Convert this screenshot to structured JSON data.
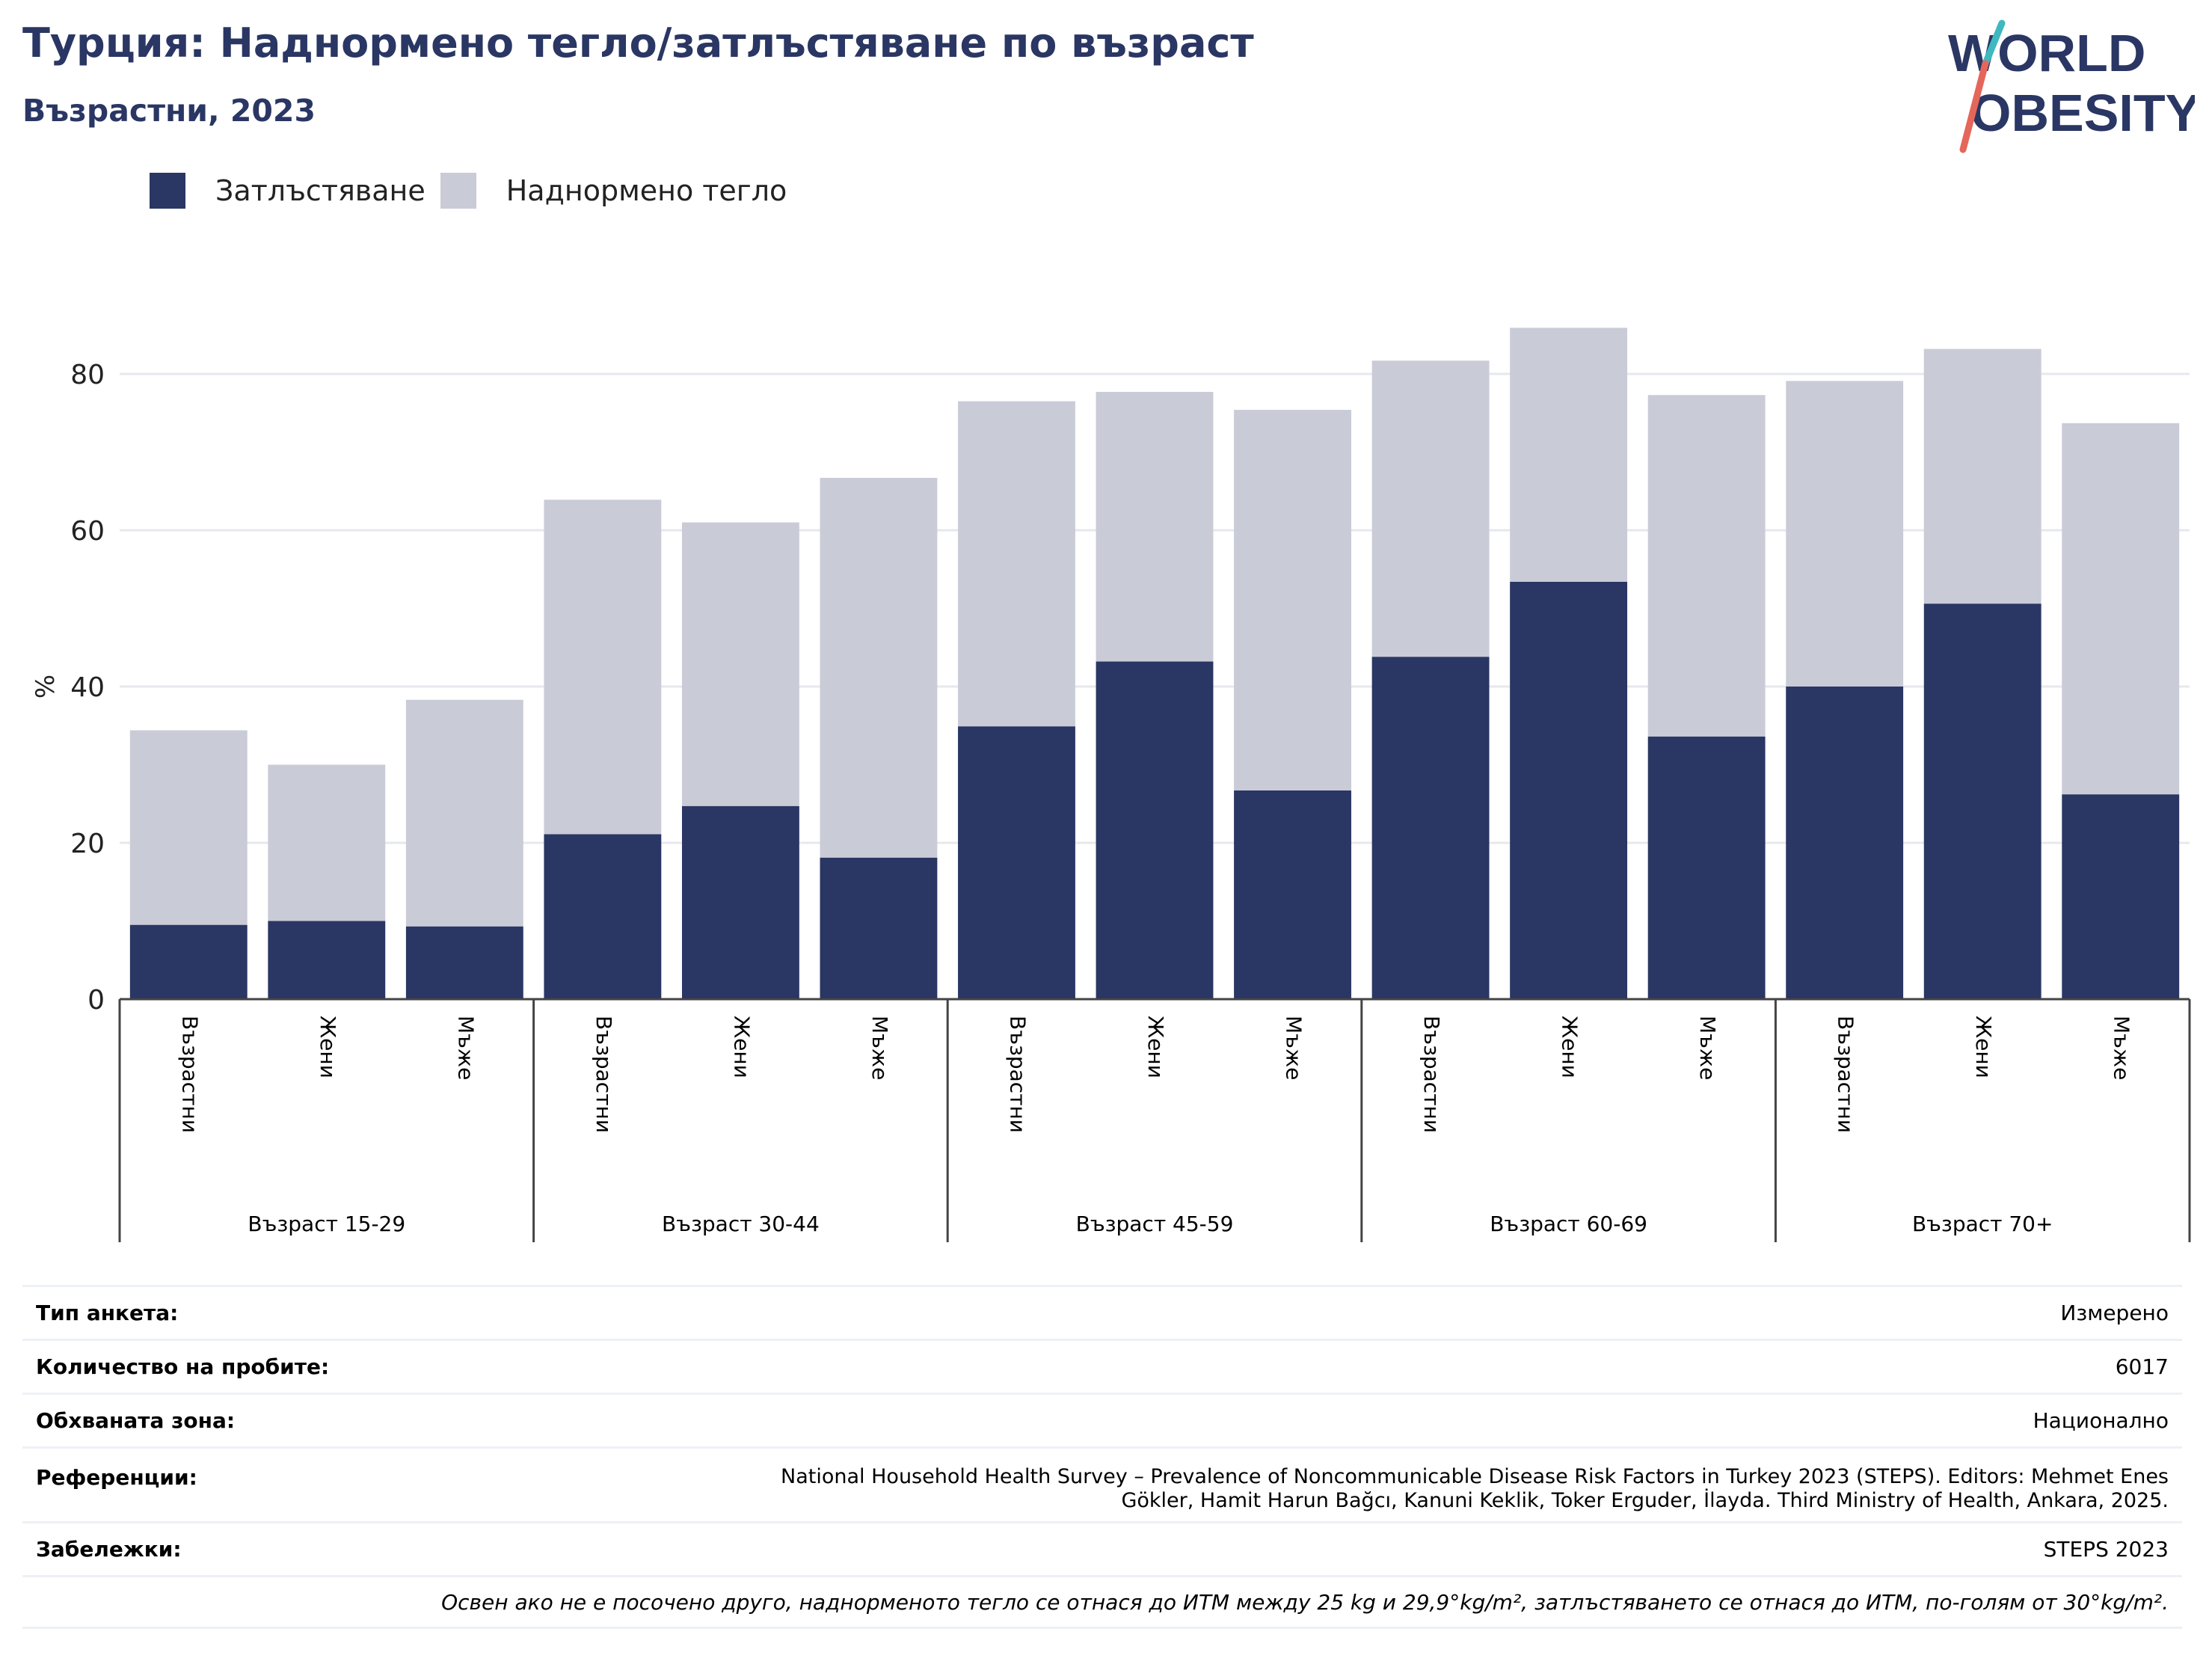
{
  "header": {
    "title": "Турция: Наднормено тегло/затлъстяване по възраст",
    "subtitle": "Възрастни, 2023"
  },
  "logo": {
    "line1": "WORLD",
    "line2": "OBESITY"
  },
  "legend": {
    "obesity_label": "Затлъстяване",
    "overweight_label": "Наднормено тегло"
  },
  "colors": {
    "obesity": "#2a3663",
    "overweight": "#c9cbd7",
    "grid": "#e6e8ee",
    "logo_teal": "#3fb8c0",
    "logo_coral": "#e5665a"
  },
  "chart_data": {
    "type": "bar",
    "stacked": true,
    "ylabel": "%",
    "ylim": [
      0,
      90
    ],
    "yticks": [
      0,
      20,
      40,
      60,
      80
    ],
    "grid": true,
    "legend_position": "top-left",
    "groups": [
      {
        "label": "Възраст 15-29",
        "categories": [
          "Възрастни",
          "Жени",
          "Мъже"
        ]
      },
      {
        "label": "Възраст 30-44",
        "categories": [
          "Възрастни",
          "Жени",
          "Мъже"
        ]
      },
      {
        "label": "Възраст 45-59",
        "categories": [
          "Възрастни",
          "Жени",
          "Мъже"
        ]
      },
      {
        "label": "Възраст 60-69",
        "categories": [
          "Възрастни",
          "Жени",
          "Мъже"
        ]
      },
      {
        "label": "Възраст 70+",
        "categories": [
          "Възрастни",
          "Жени",
          "Мъже"
        ]
      }
    ],
    "series": [
      {
        "name": "Затлъстяване",
        "values": [
          9.5,
          10.0,
          9.3,
          21.1,
          24.7,
          18.1,
          34.9,
          43.2,
          26.7,
          43.8,
          53.4,
          33.6,
          40.0,
          50.6,
          26.2
        ]
      },
      {
        "name": "Наднормено тегло",
        "values": [
          24.9,
          20.0,
          29.0,
          42.8,
          36.3,
          48.6,
          41.6,
          34.5,
          48.7,
          37.9,
          32.5,
          43.7,
          39.1,
          32.6,
          47.5
        ]
      }
    ]
  },
  "info": {
    "survey_type": {
      "label": "Тип анкета:",
      "value": "Измерено"
    },
    "sample_size": {
      "label": "Количество на пробите:",
      "value": "6017"
    },
    "area": {
      "label": "Обхваната зона:",
      "value": "Национално"
    },
    "references": {
      "label": "Референции:",
      "line1": "National Household Health Survey – Prevalence of Noncommunicable Disease Risk Factors in Turkey 2023 (STEPS). Editors: Mehmet Enes",
      "line2": "Gökler, Hamit Harun Bağcı, Kanuni Keklik, Toker Erguder, İlayda. Third Ministry of Health, Ankara, 2025."
    },
    "notes": {
      "label": "Забележки:",
      "value": "STEPS 2023"
    },
    "footnote": "Освен ако не е посочено друго, наднорменото тегло се отнася до ИТМ между 25 kg и 29,9°kg/m², затлъстяването се отнася до ИТМ, по-голям от 30°kg/m²."
  }
}
